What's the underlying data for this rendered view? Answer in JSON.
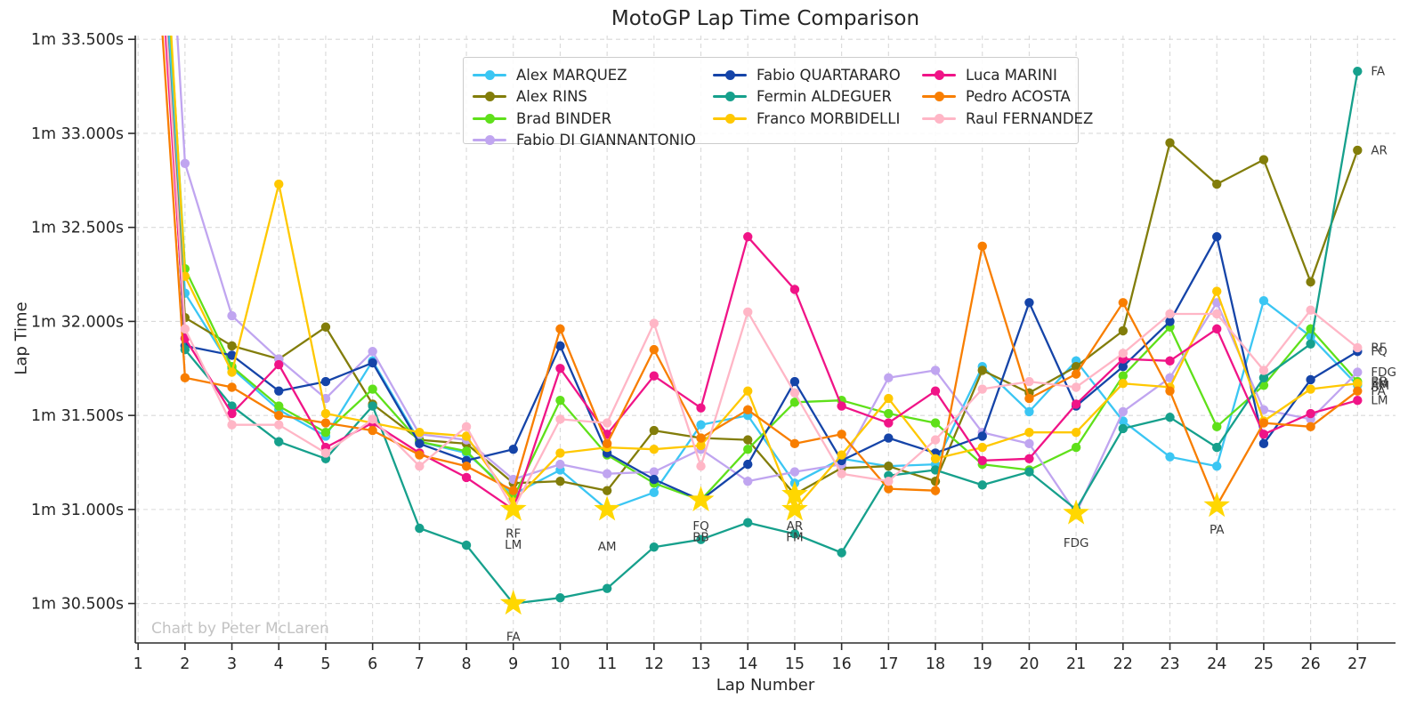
{
  "header": {
    "title": "MotoGP Lap Time Comparison"
  },
  "axes": {
    "xlabel": "Lap Number",
    "ylabel": "Lap Time"
  },
  "watermark": "Chart by Peter McLaren",
  "chart_data": {
    "type": "line",
    "title": "MotoGP Lap Time Comparison",
    "xlabel": "Lap Number",
    "ylabel": "Lap Time",
    "grid": true,
    "legend_position": "upper center",
    "legend_columns": [
      4,
      3,
      3
    ],
    "x": [
      1,
      2,
      3,
      4,
      5,
      6,
      7,
      8,
      9,
      10,
      11,
      12,
      13,
      14,
      15,
      16,
      17,
      18,
      19,
      20,
      21,
      22,
      23,
      24,
      25,
      26,
      27
    ],
    "xtick_labels": [
      "1",
      "2",
      "3",
      "4",
      "5",
      "6",
      "7",
      "8",
      "9",
      "10",
      "11",
      "12",
      "13",
      "14",
      "15",
      "16",
      "17",
      "18",
      "19",
      "20",
      "21",
      "22",
      "23",
      "24",
      "25",
      "26",
      "27"
    ],
    "ytick_values": [
      93.5,
      93.0,
      92.5,
      92.0,
      91.5,
      91.0,
      90.5
    ],
    "ytick_labels": [
      "1m 33.500s",
      "1m 33.000s",
      "1m 32.500s",
      "1m 32.000s",
      "1m 31.500s",
      "1m 31.000s",
      "1m 30.500s"
    ],
    "xlim": [
      0.94,
      27.81
    ],
    "ylim": [
      90.29,
      93.52
    ],
    "colors": {
      "axis": "#2b2b2b",
      "grid": "#d9d9d9",
      "tick_text": "#262626",
      "star": "#FFD700",
      "annotation_text": "#3a3a3a",
      "watermark": "#c3c3c3"
    },
    "series": [
      {
        "name": "Alex MARQUEZ",
        "abbr": "AM",
        "color": "#3bc6f3",
        "fastest_lap": 11,
        "values": [
          96.2,
          92.15,
          91.75,
          91.53,
          91.39,
          91.79,
          91.36,
          91.3,
          91.08,
          91.21,
          91.0,
          91.09,
          91.45,
          91.5,
          91.14,
          91.27,
          91.23,
          91.24,
          91.76,
          91.52,
          91.79,
          91.47,
          91.28,
          91.23,
          92.11,
          91.92,
          91.66
        ]
      },
      {
        "name": "Alex RINS",
        "abbr": "AR",
        "color": "#827d0a",
        "fastest_lap": 15,
        "values": [
          96.0,
          92.02,
          91.87,
          91.8,
          91.97,
          91.56,
          91.37,
          91.35,
          91.14,
          91.15,
          91.1,
          91.42,
          91.38,
          91.37,
          91.08,
          91.22,
          91.23,
          91.15,
          91.74,
          91.62,
          91.76,
          91.95,
          92.95,
          92.73,
          92.86,
          92.21,
          92.91
        ]
      },
      {
        "name": "Brad BINDER",
        "abbr": "BB",
        "color": "#5fe01a",
        "fastest_lap": 13,
        "values": [
          96.4,
          92.28,
          91.76,
          91.55,
          91.41,
          91.64,
          91.36,
          91.31,
          91.06,
          91.58,
          91.29,
          91.14,
          91.05,
          91.32,
          91.57,
          91.58,
          91.51,
          91.46,
          91.24,
          91.21,
          91.33,
          91.71,
          91.97,
          91.44,
          91.66,
          91.96,
          91.68
        ]
      },
      {
        "name": "Fabio DI GIANNANTONIO",
        "abbr": "FDG",
        "color": "#c0a5f0",
        "fastest_lap": 21,
        "values": [
          97.0,
          92.84,
          92.03,
          91.8,
          91.59,
          91.84,
          91.4,
          91.37,
          91.16,
          91.24,
          91.19,
          91.2,
          91.32,
          91.15,
          91.2,
          91.24,
          91.7,
          91.74,
          91.41,
          91.35,
          90.98,
          91.52,
          91.7,
          92.1,
          91.53,
          91.48,
          91.73
        ]
      },
      {
        "name": "Fabio QUARTARARO",
        "abbr": "FQ",
        "color": "#1544a8",
        "fastest_lap": 13,
        "values": [
          96.1,
          91.87,
          91.82,
          91.63,
          91.68,
          91.78,
          91.35,
          91.26,
          91.32,
          91.87,
          91.3,
          91.16,
          91.05,
          91.24,
          91.68,
          91.26,
          91.38,
          91.3,
          91.39,
          92.1,
          91.55,
          91.76,
          92.0,
          92.45,
          91.35,
          91.69,
          91.84
        ]
      },
      {
        "name": "Fermin ALDEGUER",
        "abbr": "FA",
        "color": "#16a08c",
        "fastest_lap": 9,
        "values": [
          96.3,
          91.85,
          91.55,
          91.36,
          91.27,
          91.55,
          90.9,
          90.81,
          90.5,
          90.53,
          90.58,
          90.8,
          90.84,
          90.93,
          90.87,
          90.77,
          91.18,
          91.21,
          91.13,
          91.2,
          91.0,
          91.43,
          91.49,
          91.33,
          91.7,
          91.88,
          93.33
        ]
      },
      {
        "name": "Franco MORBIDELLI",
        "abbr": "FM",
        "color": "#ffc800",
        "fastest_lap": 15,
        "values": [
          96.6,
          92.24,
          91.73,
          92.73,
          91.51,
          91.46,
          91.41,
          91.39,
          91.04,
          91.3,
          91.33,
          91.32,
          91.34,
          91.63,
          91.0,
          91.29,
          91.59,
          91.27,
          91.33,
          91.41,
          91.41,
          91.67,
          91.65,
          92.16,
          91.47,
          91.64,
          91.67
        ]
      },
      {
        "name": "Luca MARINI",
        "abbr": "LM",
        "color": "#f01487",
        "fastest_lap": 9,
        "values": [
          95.8,
          91.91,
          91.51,
          91.77,
          91.33,
          91.46,
          91.3,
          91.17,
          91.0,
          91.75,
          91.4,
          91.71,
          91.54,
          92.45,
          92.17,
          91.55,
          91.46,
          91.63,
          91.26,
          91.27,
          91.56,
          91.8,
          91.79,
          91.96,
          91.4,
          91.51,
          91.58
        ]
      },
      {
        "name": "Pedro ACOSTA",
        "abbr": "PA",
        "color": "#f87e00",
        "fastest_lap": 24,
        "values": [
          95.5,
          91.7,
          91.65,
          91.5,
          91.46,
          91.42,
          91.29,
          91.23,
          91.1,
          91.96,
          91.35,
          91.85,
          91.38,
          91.53,
          91.35,
          91.4,
          91.11,
          91.1,
          92.4,
          91.59,
          91.72,
          92.1,
          91.63,
          91.02,
          91.46,
          91.44,
          91.63
        ]
      },
      {
        "name": "Raul FERNANDEZ",
        "abbr": "RF",
        "color": "#ffb6c6",
        "fastest_lap": 9,
        "values": [
          96.0,
          91.96,
          91.45,
          91.45,
          91.3,
          91.48,
          91.23,
          91.44,
          91.0,
          91.48,
          91.46,
          91.99,
          91.23,
          92.05,
          91.62,
          91.19,
          91.15,
          91.37,
          91.64,
          91.68,
          91.65,
          91.83,
          92.04,
          92.04,
          91.74,
          92.06,
          91.86
        ]
      }
    ],
    "annotations": [
      {
        "label": "RF",
        "lap": 9,
        "v": 90.87
      },
      {
        "label": "LM",
        "lap": 9,
        "v": 90.81
      },
      {
        "label": "FA",
        "lap": 9,
        "v": 90.32
      },
      {
        "label": "AM",
        "lap": 11,
        "v": 90.8
      },
      {
        "label": "FQ",
        "lap": 13,
        "v": 90.91
      },
      {
        "label": "BB",
        "lap": 13,
        "v": 90.85
      },
      {
        "label": "AR",
        "lap": 15,
        "v": 90.91
      },
      {
        "label": "FM",
        "lap": 15,
        "v": 90.85
      },
      {
        "label": "FDG",
        "lap": 21,
        "v": 90.82
      },
      {
        "label": "PA",
        "lap": 24,
        "v": 90.89
      }
    ]
  }
}
